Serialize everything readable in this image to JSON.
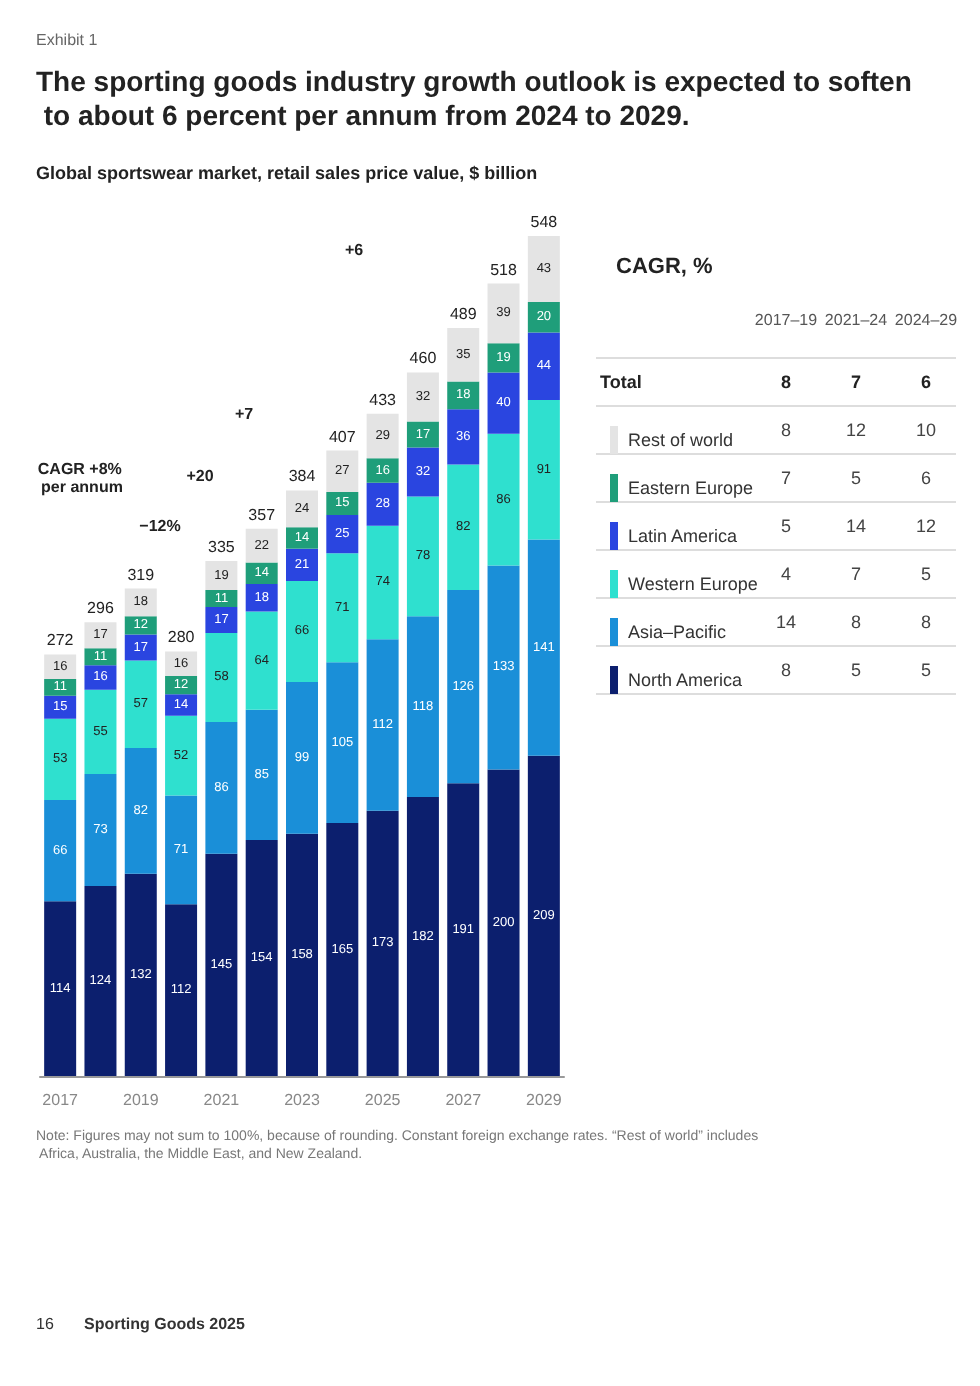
{
  "chart_data": {
    "type": "bar",
    "stacked": true,
    "title": "The sporting goods industry growth outlook is expected to soften to about 6 percent per annum from 2024 to 2029.",
    "subtitle": "Global sportswear market, retail sales price value, $ billion",
    "x": [
      2017,
      2018,
      2019,
      2020,
      2021,
      2022,
      2023,
      2024,
      2025,
      2026,
      2027,
      2028,
      2029
    ],
    "xlim": [
      2016.5,
      2029.5
    ],
    "xticks": [
      2017,
      2019,
      2021,
      2023,
      2025,
      2027,
      2029
    ],
    "tick_labels": "x",
    "series": [
      {
        "name": "North America",
        "color": "#0c1f6e",
        "values": [
          114,
          124,
          132,
          112,
          145,
          154,
          158,
          165,
          173,
          182,
          191,
          200,
          209
        ]
      },
      {
        "name": "Asia–Pacific",
        "color": "#1a8fd8",
        "values": [
          66,
          73,
          82,
          71,
          86,
          85,
          99,
          105,
          112,
          118,
          126,
          133,
          141
        ]
      },
      {
        "name": "Western Europe",
        "color": "#2fe0cf",
        "values": [
          53,
          55,
          57,
          52,
          58,
          64,
          66,
          71,
          74,
          78,
          82,
          86,
          91
        ]
      },
      {
        "name": "Latin America",
        "color": "#2a45e0",
        "values": [
          15,
          16,
          17,
          14,
          17,
          18,
          21,
          25,
          28,
          32,
          36,
          40,
          44
        ]
      },
      {
        "name": "Eastern Europe",
        "color": "#1f9e7a",
        "values": [
          11,
          11,
          12,
          12,
          11,
          14,
          14,
          15,
          16,
          17,
          18,
          19,
          20
        ]
      },
      {
        "name": "Rest of world",
        "color": "#e4e4e4",
        "values": [
          16,
          17,
          18,
          16,
          19,
          22,
          24,
          27,
          29,
          32,
          35,
          39,
          43
        ]
      }
    ],
    "totals": [
      "272",
      "296",
      "319",
      "280",
      "335",
      "357",
      "384",
      "407",
      "433",
      "460",
      "489",
      "518",
      "548"
    ],
    "data_labels": true,
    "legend": "right",
    "legend_title": "CAGR, %",
    "annotations": [
      "Exhibit 1",
      "CAGR +8% per annum",
      "−12%",
      "+20",
      "+7",
      "+6",
      "Note: Figures may not sum to 100%, because of rounding. Constant foreign exchange rates. “Rest of world” includes Africa, Australia, the Middle East, and New Zealand.",
      "16",
      "Sporting Goods 2025",
      "2017–19",
      "2021–24",
      "2024–29",
      "Total",
      "8",
      "7",
      "6",
      "8",
      "12",
      "10",
      "7",
      "5",
      "6",
      "5",
      "14",
      "12",
      "4",
      "7",
      "5",
      "14",
      "8",
      "8",
      "8",
      "5",
      "5"
    ]
  }
}
